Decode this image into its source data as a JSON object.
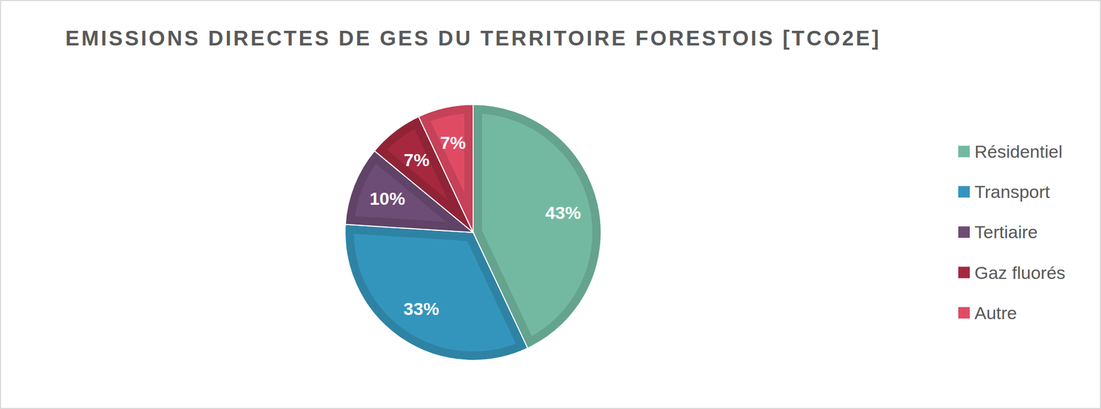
{
  "chart_data": {
    "type": "pie",
    "title": "EMISSIONS DIRECTES DE GES DU TERRITOIRE FORESTOIS [TCO2E]",
    "categories": [
      "Résidentiel",
      "Transport",
      "Tertiaire",
      "Gaz fluorés",
      "Autre"
    ],
    "values": [
      43,
      33,
      10,
      7,
      7
    ],
    "value_labels": [
      "43%",
      "33%",
      "10%",
      "7%",
      "7%"
    ],
    "colors": [
      "#73b9a2",
      "#3495bc",
      "#6d4c75",
      "#a5283f",
      "#e04b64"
    ],
    "data_labels": true,
    "legend": "right"
  }
}
